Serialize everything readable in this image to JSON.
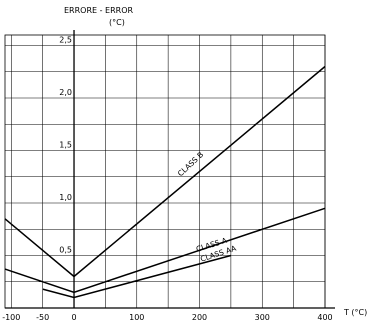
{
  "chart_data": {
    "type": "line",
    "title": "",
    "ylabel": "ERRORE - ERROR",
    "ylabel_unit": "(°C)",
    "xlabel": "T (°C)",
    "xlim": [
      -110,
      400
    ],
    "ylim": [
      0,
      2.6
    ],
    "grid": true,
    "legend": "inline labels on lines",
    "x_ticks": [
      {
        "value": -100,
        "label": "-100"
      },
      {
        "value": -50,
        "label": "-50"
      },
      {
        "value": 0,
        "label": "0"
      },
      {
        "value": 100,
        "label": "100"
      },
      {
        "value": 200,
        "label": "200"
      },
      {
        "value": 300,
        "label": "300"
      },
      {
        "value": 400,
        "label": "400"
      }
    ],
    "y_ticks": [
      {
        "value": 0.5,
        "label": "0,5"
      },
      {
        "value": 1.0,
        "label": "1,0"
      },
      {
        "value": 1.5,
        "label": "1,5"
      },
      {
        "value": 2.0,
        "label": "2,0"
      },
      {
        "value": 2.5,
        "label": "2,5"
      }
    ],
    "series": [
      {
        "name": "CLASS B",
        "points": [
          [
            -110,
            0.85
          ],
          [
            0,
            0.3
          ],
          [
            400,
            2.3
          ]
        ],
        "label_at": [
          170,
          1.25
        ],
        "label_angle": -43
      },
      {
        "name": "CLASS A",
        "points": [
          [
            -110,
            0.37
          ],
          [
            0,
            0.15
          ],
          [
            400,
            0.95
          ]
        ],
        "label_at": [
          196,
          0.535
        ],
        "label_angle": -17
      },
      {
        "name": "CLASS AA",
        "points": [
          [
            -50,
            0.18
          ],
          [
            0,
            0.1
          ],
          [
            250,
            0.5
          ]
        ],
        "label_at": [
          203,
          0.44
        ],
        "label_angle": -18
      }
    ]
  }
}
